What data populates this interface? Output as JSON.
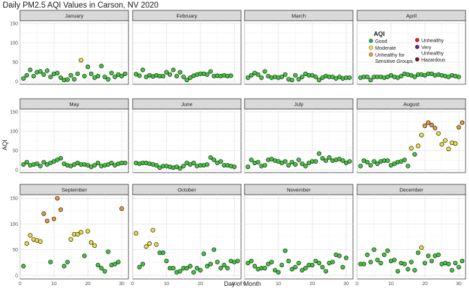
{
  "chart_data": {
    "type": "scatter",
    "title": "Daily PM2.5 AQI Values in Carson, NV 2020",
    "xlabel": "Day of Month",
    "ylabel": "AQI",
    "xlim": [
      0,
      32
    ],
    "ylim": [
      -7,
      157
    ],
    "x_ticks": [
      0,
      10,
      20,
      30
    ],
    "y_ticks": [
      0,
      50,
      100,
      150
    ],
    "grid": true,
    "legend": {
      "title": "AQI",
      "placement": "inside-top-right (April panel)",
      "entries": [
        {
          "label": "Good",
          "color": "#1db954"
        },
        {
          "label": "Moderate",
          "color": "#f0e442"
        },
        {
          "label": "Unhealthy for Sensitive Groups",
          "color": "#e8a33a"
        },
        {
          "label": "Unhealthy",
          "color": "#e0212a"
        },
        {
          "label": "Very Unhealthy",
          "color": "#5a2d82"
        },
        {
          "label": "Hazardous",
          "color": "#7f1026"
        }
      ]
    },
    "category_colors": {
      "Good": "#3fc83a",
      "Moderate": "#ece23a",
      "Unhealthy for Sensitive Groups": "#e89a3c"
    },
    "panels": [
      {
        "month": "January",
        "values": [
          8,
          16,
          30,
          14,
          24,
          26,
          18,
          28,
          12,
          20,
          22,
          10,
          4,
          5,
          16,
          6,
          20,
          55,
          14,
          38,
          20,
          10,
          14,
          40,
          12,
          6,
          22,
          12,
          18,
          14,
          20
        ]
      },
      {
        "month": "February",
        "values": [
          19,
          15,
          30,
          12,
          16,
          13,
          16,
          14,
          14,
          24,
          18,
          30,
          14,
          24,
          12,
          4,
          10,
          15,
          18,
          20,
          20,
          18,
          26,
          14,
          15,
          14,
          16,
          14,
          15
        ]
      },
      {
        "month": "March",
        "values": [
          10,
          16,
          22,
          18,
          10,
          26,
          14,
          10,
          12,
          10,
          12,
          18,
          6,
          4,
          16,
          6,
          12,
          20,
          16,
          16,
          12,
          4,
          10,
          14,
          12,
          12,
          8,
          12,
          8,
          10,
          10
        ]
      },
      {
        "month": "April",
        "values": [
          10,
          12,
          12,
          4,
          12,
          12,
          12,
          10,
          12,
          16,
          12,
          10,
          14,
          20,
          18,
          16,
          12,
          18,
          18,
          16,
          20,
          20,
          16,
          18,
          16,
          14,
          12,
          16,
          14,
          12
        ]
      },
      {
        "month": "May",
        "values": [
          14,
          20,
          12,
          14,
          16,
          10,
          20,
          14,
          18,
          22,
          26,
          30,
          16,
          12,
          10,
          14,
          18,
          14,
          14,
          12,
          8,
          12,
          18,
          10,
          12,
          14,
          18,
          12,
          16,
          18,
          18
        ]
      },
      {
        "month": "June",
        "values": [
          18,
          16,
          18,
          18,
          16,
          14,
          12,
          6,
          10,
          10,
          8,
          6,
          8,
          4,
          10,
          18,
          14,
          18,
          10,
          12,
          12,
          14,
          32,
          26,
          18,
          22,
          12,
          12,
          10,
          8
        ]
      },
      {
        "month": "July",
        "values": [
          8,
          26,
          18,
          20,
          10,
          12,
          26,
          28,
          24,
          22,
          18,
          22,
          12,
          20,
          14,
          26,
          16,
          10,
          18,
          22,
          22,
          42,
          30,
          24,
          32,
          24,
          26,
          28,
          24,
          18,
          22
        ]
      },
      {
        "month": "August",
        "values": [
          10,
          24,
          20,
          12,
          22,
          16,
          22,
          24,
          24,
          12,
          16,
          20,
          22,
          26,
          10,
          56,
          40,
          62,
          90,
          114,
          122,
          116,
          108,
          94,
          66,
          76,
          54,
          70,
          68,
          110,
          122
        ]
      },
      {
        "month": "September",
        "values": [
          18,
          62,
          78,
          70,
          68,
          66,
          120,
          106,
          26,
          110,
          150,
          128,
          18,
          26,
          70,
          80,
          80,
          84,
          38,
          86,
          64,
          58,
          20,
          14,
          8,
          46,
          20,
          22,
          26,
          130
        ]
      },
      {
        "month": "October",
        "values": [
          82,
          16,
          22,
          56,
          62,
          88,
          60,
          44,
          44,
          28,
          14,
          14,
          6,
          8,
          14,
          14,
          18,
          6,
          14,
          10,
          42,
          18,
          22,
          50,
          26,
          14,
          20,
          14,
          28,
          26,
          28
        ]
      },
      {
        "month": "November",
        "values": [
          24,
          28,
          18,
          12,
          14,
          14,
          22,
          26,
          10,
          6,
          20,
          48,
          28,
          12,
          16,
          24,
          10,
          14,
          20,
          20,
          28,
          24,
          16,
          8,
          24,
          26,
          40,
          38,
          16,
          34
        ]
      },
      {
        "month": "December",
        "values": [
          22,
          22,
          40,
          26,
          50,
          30,
          24,
          40,
          48,
          28,
          30,
          8,
          24,
          22,
          12,
          26,
          10,
          44,
          54,
          24,
          38,
          28,
          38,
          40,
          22,
          24,
          22,
          10,
          24,
          16,
          28
        ]
      }
    ]
  }
}
